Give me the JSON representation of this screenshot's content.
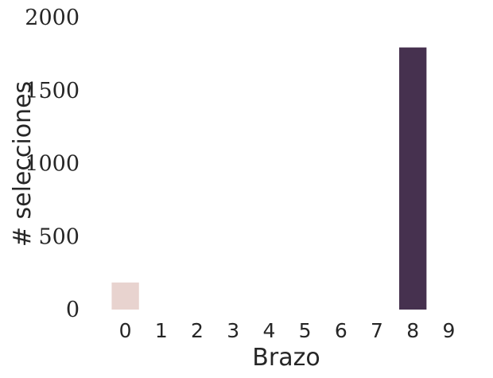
{
  "chart_data": {
    "type": "bar",
    "title": "",
    "xlabel": "Brazo",
    "ylabel": "# selecciones",
    "categories": [
      "0",
      "1",
      "2",
      "3",
      "4",
      "5",
      "6",
      "7",
      "8",
      "9"
    ],
    "values": [
      185,
      0,
      0,
      0,
      0,
      0,
      0,
      0,
      1795,
      0
    ],
    "ylim": [
      0,
      2000
    ],
    "yticks": [
      "0",
      "500",
      "1000",
      "1500",
      "2000"
    ],
    "grid": false,
    "colors": [
      "#e8d3cf",
      "#e8d3cf",
      "#e8d3cf",
      "#e8d3cf",
      "#e8d3cf",
      "#e8d3cf",
      "#e8d3cf",
      "#e8d3cf",
      "#46314f",
      "#e8d3cf"
    ]
  }
}
